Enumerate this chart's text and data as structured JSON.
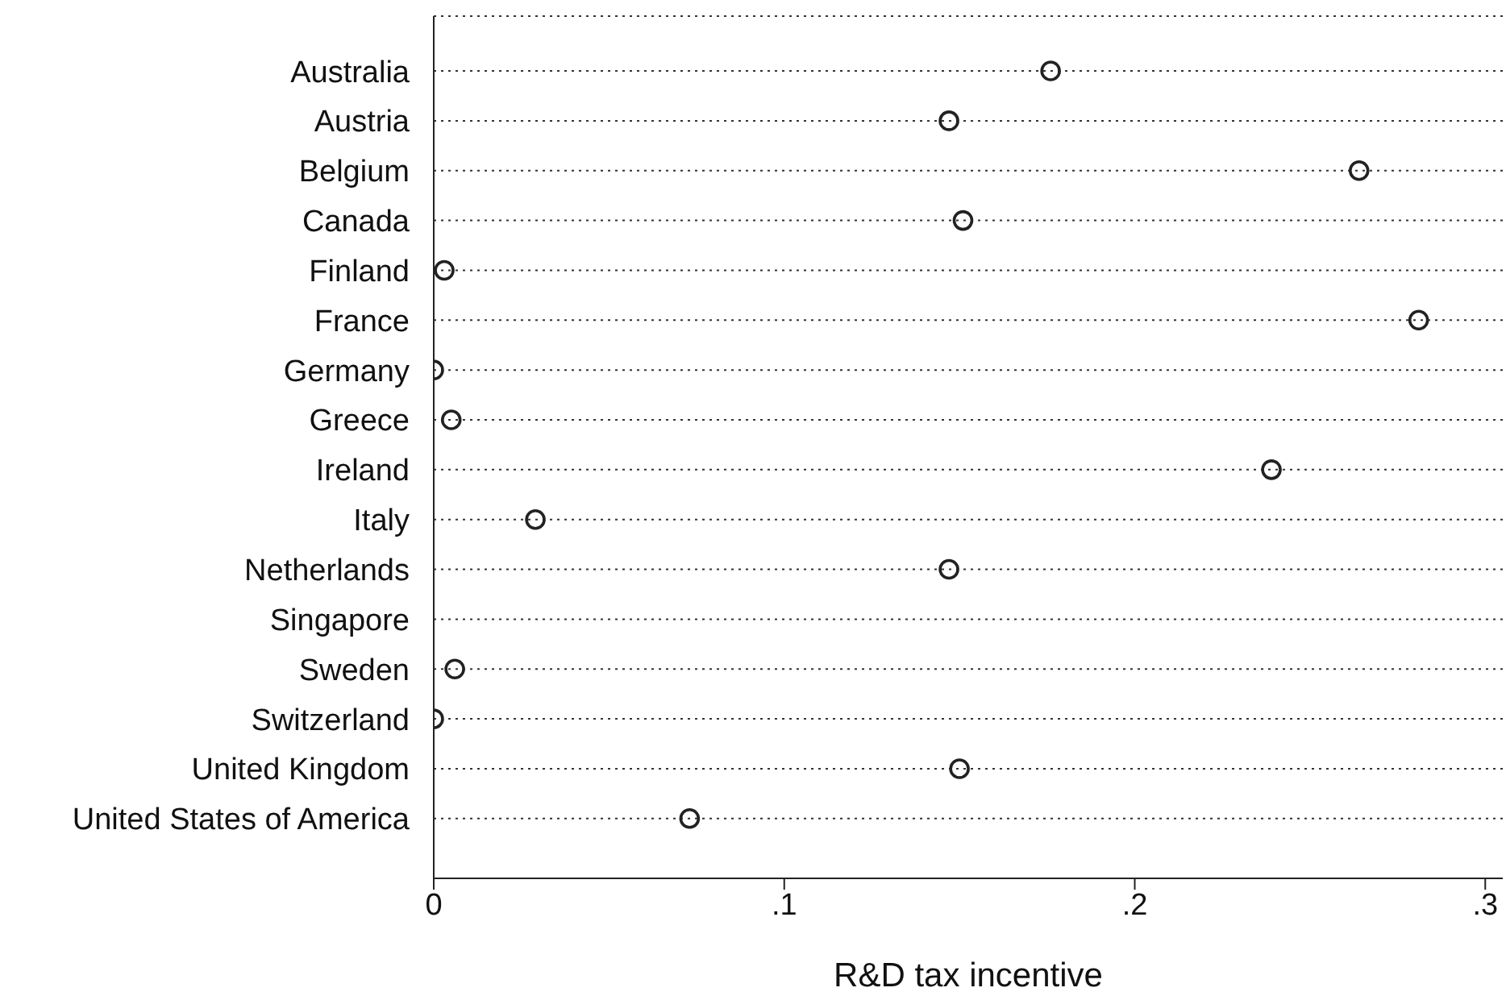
{
  "chart_data": {
    "type": "scatter",
    "orientation": "horizontal",
    "xlabel": "R&D tax incentive",
    "categories": [
      "Australia",
      "Austria",
      "Belgium",
      "Canada",
      "Finland",
      "France",
      "Germany",
      "Greece",
      "Ireland",
      "Italy",
      "Netherlands",
      "Singapore",
      "Sweden",
      "Switzerland",
      "United Kingdom",
      "United States of America"
    ],
    "values": [
      0.176,
      0.147,
      0.264,
      0.151,
      0.003,
      0.281,
      0,
      0.005,
      0.239,
      0.029,
      0.147,
      null,
      0.006,
      0,
      0.15,
      0.073
    ],
    "color": "#222222",
    "marker": "circle",
    "grid": "y",
    "xlim": [
      0,
      0.305
    ],
    "xticks": [
      0,
      {
        "value": 0.1,
        "label": ".1"
      },
      {
        "value": 0.2,
        "label": ".2"
      },
      {
        "value": 0.3,
        "label": ".3"
      }
    ]
  }
}
